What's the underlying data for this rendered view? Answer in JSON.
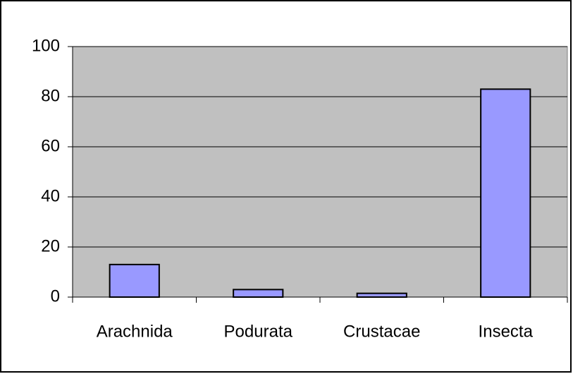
{
  "chart_data": {
    "type": "bar",
    "categories": [
      "Arachnida",
      "Podurata",
      "Crustacae",
      "Insecta"
    ],
    "values": [
      13,
      3,
      1.5,
      83
    ],
    "color": "#9999ff",
    "ylim": [
      0,
      100
    ],
    "yticks": [
      0,
      20,
      40,
      60,
      80,
      100
    ],
    "grid": true
  }
}
